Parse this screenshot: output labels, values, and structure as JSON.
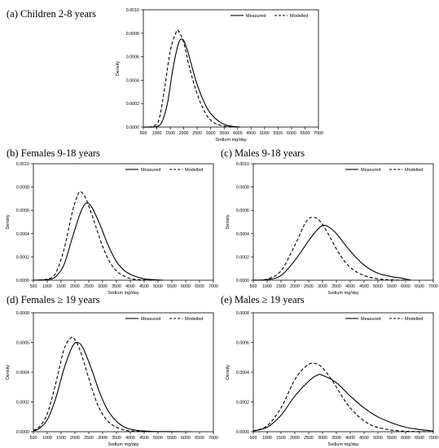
{
  "chart_data": [
    {
      "type": "line",
      "title": "(a) Children 2-8 years",
      "xlabel": "Sodium mg/day",
      "ylabel": "Density",
      "xlim": [
        500,
        7000
      ],
      "ylim": [
        0,
        0.001
      ],
      "xticks": [
        "500",
        "1000",
        "1500",
        "2000",
        "2500",
        "3000",
        "3500",
        "4000",
        "4500",
        "5000",
        "5500",
        "6000",
        "6500",
        "7000"
      ],
      "yticks": [
        "0.0000",
        "0.0002",
        "0.0004",
        "0.0006",
        "0.0008",
        "0.0010"
      ],
      "grid": false,
      "legend_position": "top-right",
      "series": [
        {
          "name": "Measured",
          "style": "solid",
          "x": [
            500,
            1000,
            1200,
            1400,
            1600,
            1800,
            1950,
            2100,
            2300,
            2500,
            2800,
            3000,
            3300,
            3600,
            3900,
            4100
          ],
          "y": [
            0,
            5e-06,
            5e-05,
            0.00021,
            0.0005,
            0.00071,
            0.00075,
            0.00068,
            0.00052,
            0.00036,
            0.00019,
            0.000115,
            5e-05,
            1.5e-05,
            4e-06,
            0
          ]
        },
        {
          "name": "Modelled",
          "style": "dashed",
          "x": [
            500,
            900,
            1100,
            1300,
            1500,
            1700,
            1800,
            2000,
            2200,
            2500,
            2800,
            3100,
            3500,
            3900
          ],
          "y": [
            0,
            1e-05,
            8e-05,
            0.00035,
            0.00065,
            0.0008,
            0.00082,
            0.00072,
            0.00052,
            0.00028,
            0.00012,
            4e-05,
            8e-06,
            0
          ]
        }
      ]
    },
    {
      "type": "line",
      "title": "(b) Females 9-18 years",
      "xlabel": "Sodium mg/day",
      "ylabel": "Density",
      "xlim": [
        500,
        7000
      ],
      "ylim": [
        0,
        0.001
      ],
      "xticks": [
        "500",
        "1000",
        "1500",
        "2000",
        "2500",
        "3000",
        "3500",
        "4000",
        "4500",
        "5000",
        "5500",
        "6000",
        "6500",
        "7000"
      ],
      "yticks": [
        "0.0000",
        "0.0002",
        "0.0004",
        "0.0006",
        "0.0008",
        "0.0010"
      ],
      "grid": false,
      "legend_position": "top-right",
      "series": [
        {
          "name": "Measured",
          "style": "solid",
          "x": [
            500,
            1000,
            1300,
            1600,
            1900,
            2200,
            2400,
            2600,
            2900,
            3200,
            3500,
            3800,
            4100,
            4500,
            5000,
            5200
          ],
          "y": [
            0,
            5e-06,
            3e-05,
            0.00013,
            0.00036,
            0.00058,
            0.00066,
            0.00063,
            0.00048,
            0.0003,
            0.00016,
            8e-05,
            4e-05,
            1.2e-05,
            2e-06,
            0
          ]
        },
        {
          "name": "Modelled",
          "style": "dashed",
          "x": [
            500,
            1000,
            1300,
            1600,
            1900,
            2100,
            2200,
            2400,
            2700,
            3000,
            3300,
            3600,
            4000,
            4400,
            4800
          ],
          "y": [
            0,
            1e-05,
            6e-05,
            0.00026,
            0.00058,
            0.00073,
            0.00076,
            0.0007,
            0.0005,
            0.00029,
            0.00014,
            6e-05,
            1.5e-05,
            3e-06,
            0
          ]
        }
      ]
    },
    {
      "type": "line",
      "title": "(c) Males 9-18 years",
      "xlabel": "Sodium mg/day",
      "ylabel": "Density",
      "xlim": [
        500,
        7000
      ],
      "ylim": [
        0,
        0.001
      ],
      "xticks": [
        "500",
        "1000",
        "1500",
        "2000",
        "2500",
        "3000",
        "3500",
        "4000",
        "4500",
        "5000",
        "5500",
        "6000",
        "6500",
        "7000"
      ],
      "yticks": [
        "0.0000",
        "0.0002",
        "0.0004",
        "0.0006",
        "0.0008",
        "0.0010"
      ],
      "grid": false,
      "legend_position": "top-right",
      "series": [
        {
          "name": "Measured",
          "style": "solid",
          "x": [
            500,
            1000,
            1500,
            2000,
            2500,
            2800,
            3000,
            3200,
            3500,
            4000,
            4500,
            5000,
            5500,
            5800,
            6000,
            6200
          ],
          "y": [
            0,
            5e-06,
            4e-05,
            0.00017,
            0.00034,
            0.00043,
            0.00047,
            0.00046,
            0.0004,
            0.00025,
            0.00013,
            6e-05,
            3e-05,
            2e-05,
            1e-05,
            0
          ]
        },
        {
          "name": "Modelled",
          "style": "dashed",
          "x": [
            500,
            1000,
            1500,
            2000,
            2400,
            2650,
            2900,
            3200,
            3600,
            4000,
            4500,
            5000,
            5500,
            6000
          ],
          "y": [
            0,
            1e-05,
            8e-05,
            0.0003,
            0.0005,
            0.00054,
            0.00051,
            0.0004,
            0.00023,
            0.00011,
            4e-05,
            1.2e-05,
            3e-06,
            0
          ]
        }
      ]
    },
    {
      "type": "line",
      "title": "(d) Females ≥ 19 years",
      "xlabel": "Sodium mg/day",
      "ylabel": "Density",
      "xlim": [
        500,
        7000
      ],
      "ylim": [
        0,
        0.0008
      ],
      "xticks": [
        "500",
        "1000",
        "1500",
        "2000",
        "2500",
        "3000",
        "3500",
        "4000",
        "4500",
        "5000",
        "5500",
        "6000",
        "6500",
        "7000"
      ],
      "yticks": [
        "0.0000",
        "0.0002",
        "0.0004",
        "0.0006",
        "0.0008"
      ],
      "grid": false,
      "legend_position": "top-right",
      "series": [
        {
          "name": "Measured",
          "style": "solid",
          "x": [
            500,
            700,
            1000,
            1300,
            1600,
            1900,
            2100,
            2300,
            2600,
            2900,
            3200,
            3500,
            3800,
            4200,
            4700,
            5200,
            6000,
            6200
          ],
          "y": [
            5e-06,
            2e-05,
            8e-05,
            0.00022,
            0.00042,
            0.00057,
            0.0006,
            0.00056,
            0.00042,
            0.00026,
            0.00014,
            7e-05,
            3e-05,
            1e-05,
            3e-06,
            1e-06,
            0,
            0
          ]
        },
        {
          "name": "Modelled",
          "style": "dashed",
          "x": [
            500,
            700,
            1000,
            1300,
            1600,
            1850,
            2000,
            2200,
            2500,
            2800,
            3100,
            3400,
            3800,
            4200,
            4800
          ],
          "y": [
            1e-05,
            3e-05,
            0.00012,
            0.00032,
            0.00055,
            0.00063,
            0.00062,
            0.00054,
            0.00036,
            0.00019,
            9e-05,
            4e-05,
            1e-05,
            3e-06,
            0
          ]
        }
      ]
    },
    {
      "type": "line",
      "title": "(e) Males ≥ 19 years",
      "xlabel": "Sodium mg/day",
      "ylabel": "Density",
      "xlim": [
        500,
        7000
      ],
      "ylim": [
        0,
        0.0008
      ],
      "xticks": [
        "500",
        "1000",
        "1500",
        "2000",
        "2500",
        "3000",
        "3500",
        "4000",
        "4500",
        "5000",
        "5500",
        "6000",
        "6500",
        "7000"
      ],
      "yticks": [
        "0.0000",
        "0.0002",
        "0.0004",
        "0.0006",
        "0.0008"
      ],
      "grid": false,
      "legend_position": "top-right",
      "series": [
        {
          "name": "Measured",
          "style": "solid",
          "x": [
            500,
            1000,
            1500,
            2000,
            2500,
            2800,
            3000,
            3500,
            4000,
            4500,
            5000,
            5500,
            6000,
            6500,
            7000
          ],
          "y": [
            5e-06,
            3e-05,
            0.00011,
            0.00024,
            0.00034,
            0.00038,
            0.00038,
            0.00033,
            0.00024,
            0.00016,
            0.0001,
            6e-05,
            3e-05,
            1.5e-05,
            5e-06
          ]
        },
        {
          "name": "Modelled",
          "style": "dashed",
          "x": [
            500,
            1000,
            1500,
            2000,
            2400,
            2700,
            3000,
            3400,
            3800,
            4200,
            4700,
            5200,
            5800,
            6500,
            7000
          ],
          "y": [
            5e-06,
            4e-05,
            0.00016,
            0.00035,
            0.00044,
            0.00046,
            0.00043,
            0.00033,
            0.00021,
            0.00012,
            5e-05,
            2e-05,
            5e-06,
            1e-06,
            0
          ]
        }
      ]
    }
  ]
}
